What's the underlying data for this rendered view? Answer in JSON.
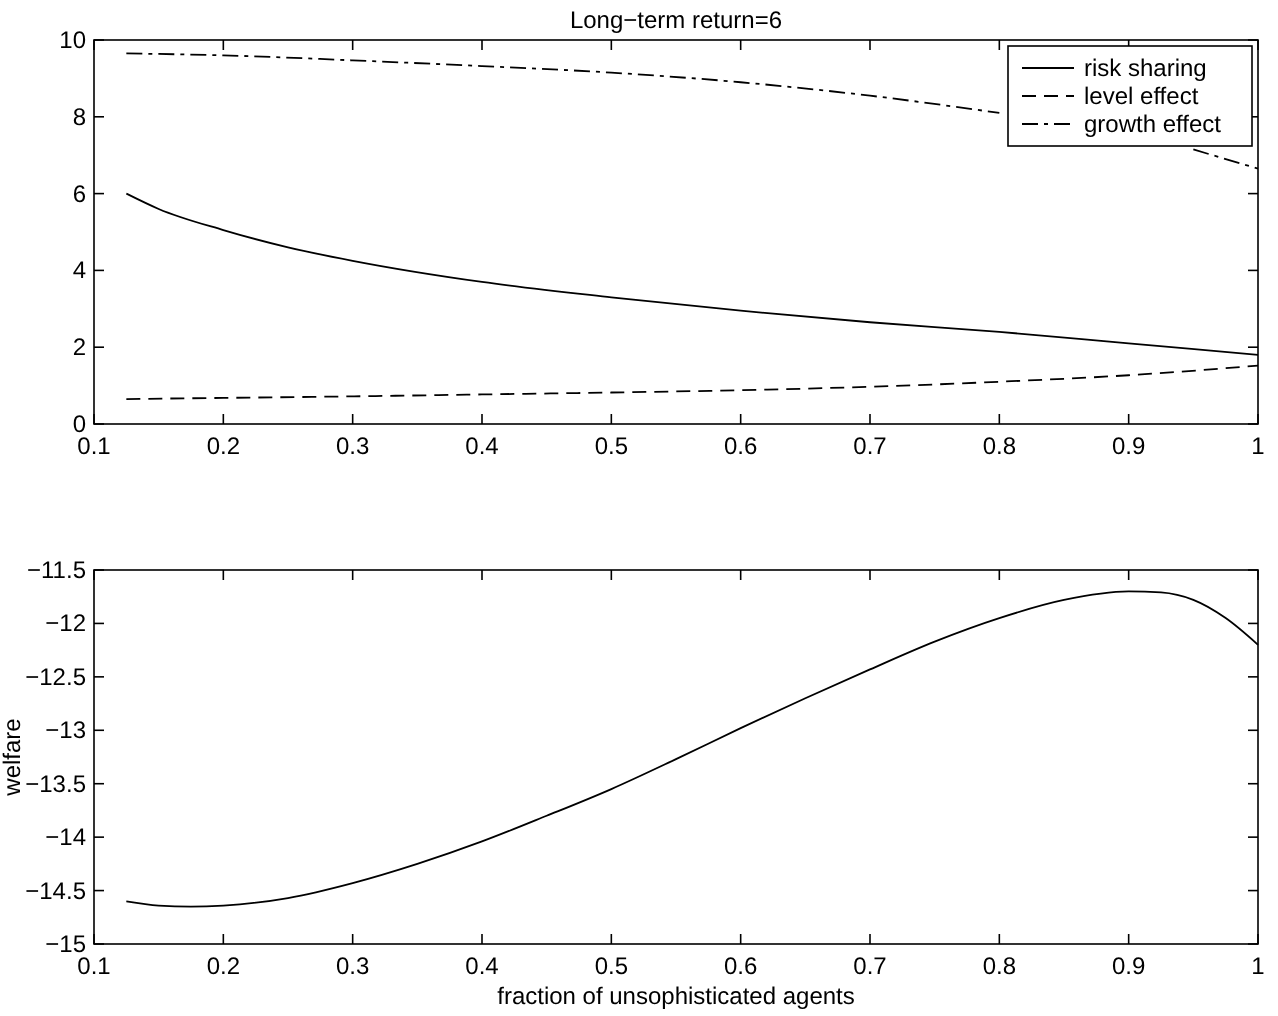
{
  "chart_data": [
    {
      "type": "line",
      "title": "Long−term return=6",
      "xlim": [
        0.1,
        1
      ],
      "xticks": [
        0.1,
        0.2,
        0.3,
        0.4,
        0.5,
        0.6,
        0.7,
        0.8,
        0.9,
        1
      ],
      "ylim": [
        0,
        10
      ],
      "yticks": [
        0,
        2,
        4,
        6,
        8,
        10
      ],
      "grid": false,
      "legend": "top right",
      "series": [
        {
          "name": "risk sharing",
          "color": "#000000",
          "line_style": "solid",
          "x": [
            0.125,
            0.15,
            0.2,
            0.25,
            0.3,
            0.4,
            0.5,
            0.6,
            0.7,
            0.8,
            0.9,
            1
          ],
          "values": [
            6.0,
            5.6,
            5.05,
            4.6,
            4.25,
            3.7,
            3.3,
            2.95,
            2.65,
            2.4,
            2.1,
            1.8
          ]
        },
        {
          "name": "level effect",
          "color": "#000000",
          "line_style": "dashed",
          "x": [
            0.125,
            0.2,
            0.3,
            0.4,
            0.5,
            0.6,
            0.7,
            0.8,
            0.9,
            1
          ],
          "values": [
            0.65,
            0.68,
            0.72,
            0.77,
            0.82,
            0.88,
            0.97,
            1.1,
            1.27,
            1.52
          ]
        },
        {
          "name": "growth effect",
          "color": "#000000",
          "line_style": "dashdot",
          "x": [
            0.125,
            0.2,
            0.3,
            0.4,
            0.5,
            0.6,
            0.7,
            0.8,
            0.85,
            0.9,
            0.95,
            1
          ],
          "values": [
            9.65,
            9.6,
            9.47,
            9.32,
            9.15,
            8.9,
            8.55,
            8.1,
            null,
            null,
            7.15,
            6.65
          ]
        }
      ]
    },
    {
      "type": "line",
      "xlabel": "fraction of unsophisticated agents",
      "ylabel": "welfare",
      "xlim": [
        0.1,
        1
      ],
      "xticks": [
        0.1,
        0.2,
        0.3,
        0.4,
        0.5,
        0.6,
        0.7,
        0.8,
        0.9,
        1
      ],
      "ylim": [
        -15,
        -11.5
      ],
      "yticks": [
        -15,
        -14.5,
        -14,
        -13.5,
        -13,
        -12.5,
        -12,
        -11.5
      ],
      "grid": false,
      "series": [
        {
          "color": "#000000",
          "line_style": "solid",
          "x": [
            0.125,
            0.15,
            0.175,
            0.2,
            0.25,
            0.3,
            0.35,
            0.4,
            0.45,
            0.5,
            0.55,
            0.6,
            0.65,
            0.7,
            0.75,
            0.8,
            0.85,
            0.9,
            0.925,
            0.95,
            0.975,
            1
          ],
          "values": [
            -14.6,
            -14.64,
            -14.65,
            -14.64,
            -14.57,
            -14.43,
            -14.25,
            -14.04,
            -13.8,
            -13.55,
            -13.27,
            -12.98,
            -12.7,
            -12.43,
            -12.17,
            -11.95,
            -11.78,
            -11.7,
            -11.71,
            -11.78,
            -11.95,
            -12.2
          ]
        }
      ]
    }
  ]
}
